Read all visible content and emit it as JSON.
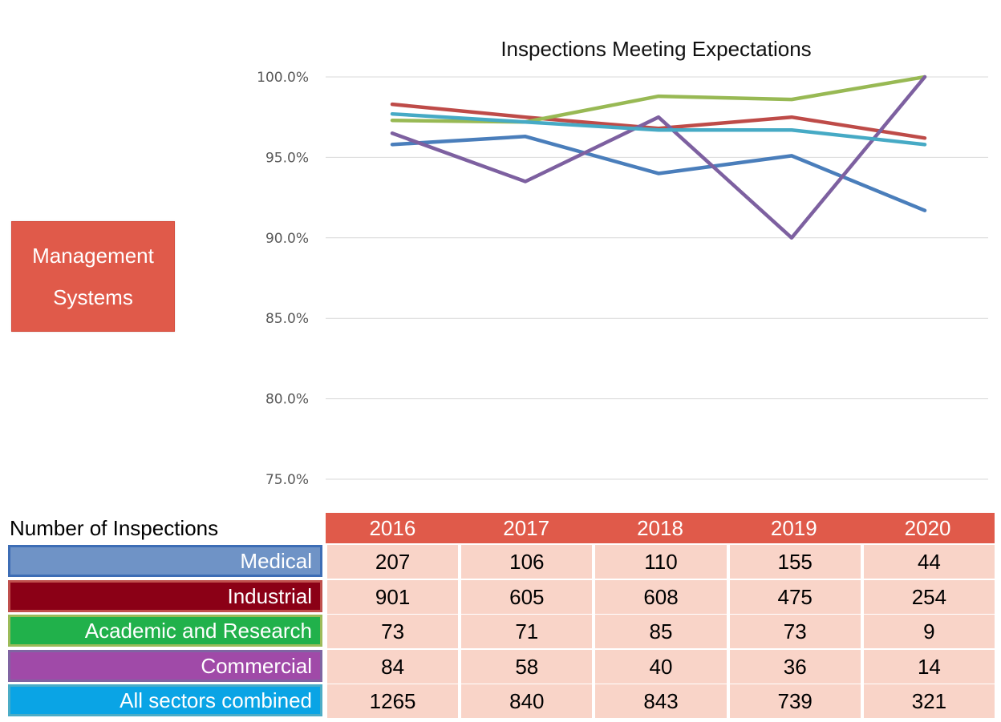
{
  "badge": {
    "text": "Management\nSystems"
  },
  "chart_data": {
    "type": "line",
    "title": "Inspections Meeting Expectations",
    "xlabel": "",
    "ylabel": "",
    "categories": [
      "2016",
      "2017",
      "2018",
      "2019",
      "2020"
    ],
    "ylim": [
      0.75,
      1.0
    ],
    "y_ticks": [
      "100.0%",
      "95.0%",
      "90.0%",
      "85.0%",
      "80.0%",
      "75.0%"
    ],
    "y_tick_values": [
      1.0,
      0.95,
      0.9,
      0.85,
      0.8,
      0.75
    ],
    "grid": true,
    "series": [
      {
        "key": "medical",
        "color": "#4a7ebb",
        "values": [
          0.958,
          0.963,
          0.94,
          0.951,
          0.917
        ]
      },
      {
        "key": "industrial",
        "color": "#be4b48",
        "values": [
          0.983,
          0.975,
          0.968,
          0.975,
          0.962
        ]
      },
      {
        "key": "academic",
        "color": "#98b954",
        "values": [
          0.973,
          0.972,
          0.988,
          0.986,
          1.0
        ]
      },
      {
        "key": "commercial",
        "color": "#7d60a0",
        "values": [
          0.965,
          0.935,
          0.975,
          0.9,
          1.0
        ]
      },
      {
        "key": "all",
        "color": "#46aac5",
        "values": [
          0.977,
          0.972,
          0.967,
          0.967,
          0.958
        ]
      }
    ]
  },
  "table": {
    "title": "Number of Inspections",
    "years": [
      "2016",
      "2017",
      "2018",
      "2019",
      "2020"
    ],
    "rows": [
      {
        "label": "Medical",
        "bg": "#6f93c6",
        "border": "#3d6db5",
        "values": [
          "207",
          "106",
          "110",
          "155",
          "44"
        ]
      },
      {
        "label": "Industrial",
        "bg": "#8b0016",
        "border": "#c0504d",
        "values": [
          "901",
          "605",
          "608",
          "475",
          "254"
        ]
      },
      {
        "label": "Academic and Research",
        "bg": "#21b14b",
        "border": "#9bbb59",
        "values": [
          "73",
          "71",
          "85",
          "73",
          "9"
        ]
      },
      {
        "label": "Commercial",
        "bg": "#a04aa8",
        "border": "#8064a2",
        "values": [
          "84",
          "58",
          "40",
          "36",
          "14"
        ]
      },
      {
        "label": "All sectors combined",
        "bg": "#0aa4e5",
        "border": "#4bacc6",
        "values": [
          "1265",
          "840",
          "843",
          "739",
          "321"
        ]
      }
    ]
  }
}
